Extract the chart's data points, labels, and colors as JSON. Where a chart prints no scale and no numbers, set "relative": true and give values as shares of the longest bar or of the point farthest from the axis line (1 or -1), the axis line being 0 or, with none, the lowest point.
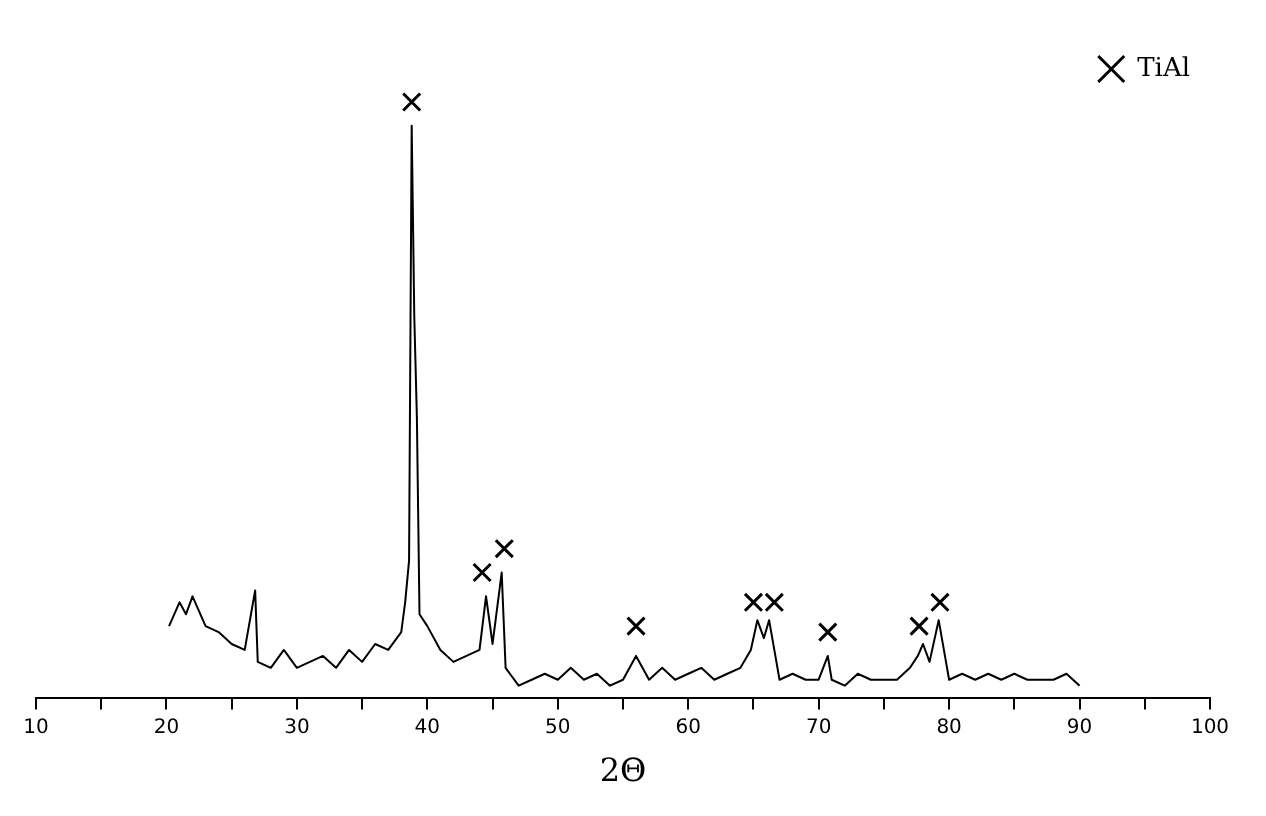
{
  "chart_data": {
    "type": "line",
    "relative": true,
    "xlabel": "2Θ",
    "xlim": [
      10,
      100
    ],
    "xticks": [
      10,
      {
        "value": 15,
        "label": null
      },
      20,
      {
        "value": 25,
        "label": null
      },
      30,
      {
        "value": 35,
        "label": null
      },
      40,
      {
        "value": 45,
        "label": null
      },
      50,
      {
        "value": 55,
        "label": null
      },
      60,
      {
        "value": 65,
        "label": null
      },
      70,
      {
        "value": 75,
        "label": null
      },
      80,
      {
        "value": 85,
        "label": null
      },
      90,
      {
        "value": 95,
        "label": null
      },
      100
    ],
    "legend": "top right",
    "grid": false,
    "series": [
      {
        "color": "#000000",
        "marker": "none",
        "x": [
          20.2,
          21,
          21.5,
          22,
          23,
          24,
          25,
          26,
          26.8,
          27,
          28,
          29,
          30,
          31,
          32,
          33,
          34,
          35,
          36,
          37,
          38,
          38.3,
          38.6,
          38.8,
          39,
          39.2,
          39.4,
          40,
          41,
          42,
          43,
          44,
          44.5,
          45,
          45.7,
          46,
          47,
          48,
          49,
          50,
          51,
          52,
          53,
          54,
          55,
          56,
          57,
          58,
          59,
          60,
          61,
          62,
          63,
          64,
          64.8,
          65.3,
          65.8,
          66.2,
          66.6,
          67,
          68,
          69,
          70,
          70.7,
          71,
          72,
          73,
          74,
          75,
          76,
          77,
          77.6,
          78,
          78.5,
          79.2,
          79.6,
          80,
          81,
          82,
          83,
          84,
          85,
          86,
          87,
          88,
          89,
          90
        ],
        "values": [
          0.12,
          0.16,
          0.14,
          0.17,
          0.12,
          0.11,
          0.09,
          0.08,
          0.18,
          0.06,
          0.05,
          0.08,
          0.05,
          0.06,
          0.07,
          0.05,
          0.08,
          0.06,
          0.09,
          0.08,
          0.11,
          0.16,
          0.23,
          0.96,
          0.64,
          0.47,
          0.14,
          0.12,
          0.08,
          0.06,
          0.07,
          0.08,
          0.17,
          0.09,
          0.21,
          0.05,
          0.02,
          0.03,
          0.04,
          0.03,
          0.05,
          0.03,
          0.04,
          0.02,
          0.03,
          0.07,
          0.03,
          0.05,
          0.03,
          0.04,
          0.05,
          0.03,
          0.04,
          0.05,
          0.08,
          0.13,
          0.1,
          0.13,
          0.08,
          0.03,
          0.04,
          0.03,
          0.03,
          0.07,
          0.03,
          0.02,
          0.04,
          0.03,
          0.03,
          0.03,
          0.05,
          0.07,
          0.09,
          0.06,
          0.13,
          0.08,
          0.03,
          0.04,
          0.03,
          0.04,
          0.03,
          0.04,
          0.03,
          0.03,
          0.03,
          0.04,
          0.02
        ]
      },
      {
        "type": "scatter",
        "name": "TiAl",
        "color": "#000000",
        "marker": "cross",
        "x": [
          38.8,
          44.2,
          45.9,
          56,
          65,
          66.6,
          70.7,
          77.7,
          79.3
        ],
        "values": [
          1.0,
          0.21,
          0.25,
          0.12,
          0.16,
          0.16,
          0.11,
          0.12,
          0.16
        ]
      }
    ]
  }
}
